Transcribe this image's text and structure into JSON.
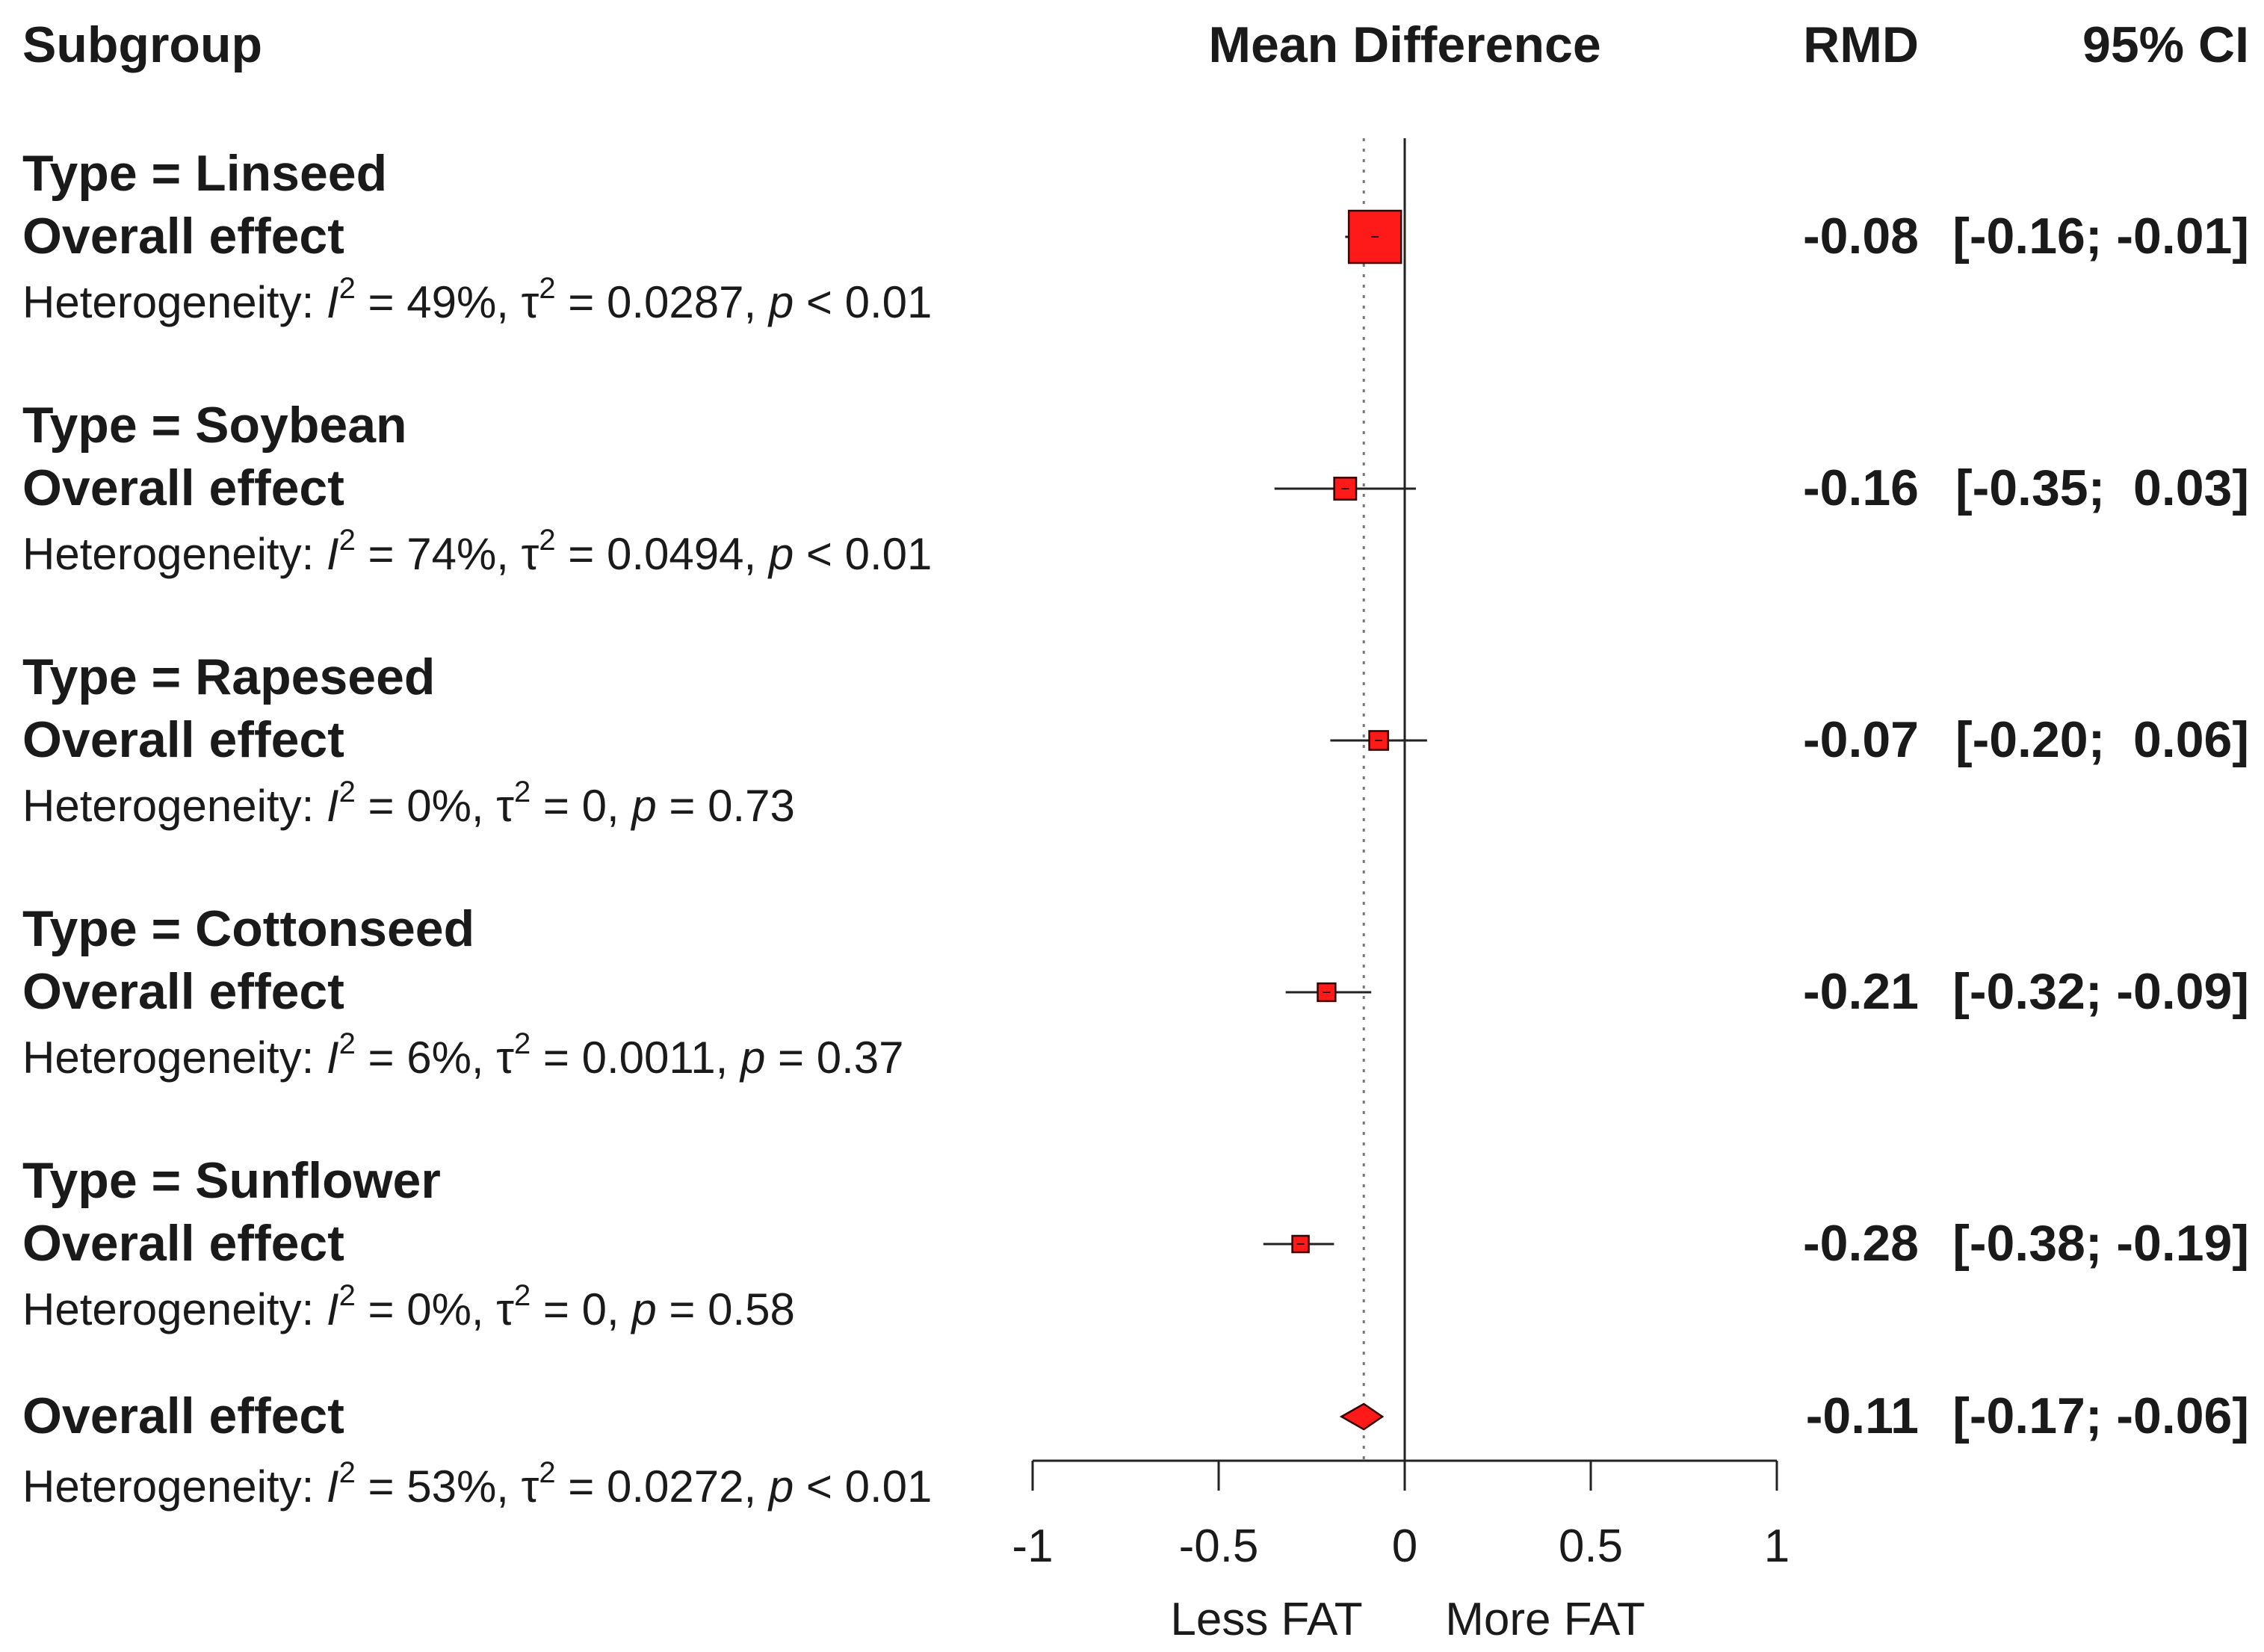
{
  "headers": {
    "subgroup": "Subgroup",
    "mean_difference": "Mean Difference",
    "rmd": "RMD",
    "ci": "95% CI"
  },
  "direction_labels": {
    "left": "Less FAT",
    "right": "More FAT"
  },
  "colors": {
    "marker_fill": "#ff1a1a",
    "marker_stroke": "#3a0000",
    "text": "#1a1a1a",
    "axis": "#222222",
    "reference_line": "#777777"
  },
  "chart_data": {
    "type": "forest",
    "xlabel": "",
    "xlim": [
      -1,
      1
    ],
    "xticks": [
      -1,
      -0.5,
      0,
      0.5,
      1
    ],
    "xtick_labels": [
      "-1",
      "-0.5",
      "0",
      "0.5",
      "1"
    ],
    "null_line": 0,
    "pooled_estimate_line": -0.11,
    "subgroups": [
      {
        "title": "Type = Linseed",
        "effect_label": "Overall effect",
        "rmd": -0.08,
        "lower": -0.16,
        "upper": -0.01,
        "rmd_text": "-0.08",
        "ci_text": "[-0.16; -0.01]",
        "weight": 1.0,
        "het": {
          "prefix": "Heterogeneity: ",
          "i2": "49%",
          "tau2": "0.0287",
          "p_op": "<",
          "p": "0.01"
        }
      },
      {
        "title": "Type = Soybean",
        "effect_label": "Overall effect",
        "rmd": -0.16,
        "lower": -0.35,
        "upper": 0.03,
        "rmd_text": "-0.16",
        "ci_text": "[-0.35;  0.03]",
        "weight": 0.42,
        "het": {
          "prefix": "Heterogeneity: ",
          "i2": "74%",
          "tau2": "0.0494",
          "p_op": "<",
          "p": "0.01"
        }
      },
      {
        "title": "Type = Rapeseed",
        "effect_label": "Overall effect",
        "rmd": -0.07,
        "lower": -0.2,
        "upper": 0.06,
        "rmd_text": "-0.07",
        "ci_text": "[-0.20;  0.06]",
        "weight": 0.36,
        "het": {
          "prefix": "Heterogeneity: ",
          "i2": "0%",
          "tau2": "0",
          "p_op": "=",
          "p": "0.73"
        }
      },
      {
        "title": "Type = Cottonseed",
        "effect_label": "Overall effect",
        "rmd": -0.21,
        "lower": -0.32,
        "upper": -0.09,
        "rmd_text": "-0.21",
        "ci_text": "[-0.32; -0.09]",
        "weight": 0.34,
        "het": {
          "prefix": "Heterogeneity: ",
          "i2": "6%",
          "tau2": "0.0011",
          "p_op": "=",
          "p": "0.37"
        }
      },
      {
        "title": "Type = Sunflower",
        "effect_label": "Overall effect",
        "rmd": -0.28,
        "lower": -0.38,
        "upper": -0.19,
        "rmd_text": "-0.28",
        "ci_text": "[-0.38; -0.19]",
        "weight": 0.31,
        "het": {
          "prefix": "Heterogeneity: ",
          "i2": "0%",
          "tau2": "0",
          "p_op": "=",
          "p": "0.58"
        }
      }
    ],
    "overall": {
      "effect_label": "Overall effect",
      "rmd": -0.11,
      "lower": -0.17,
      "upper": -0.06,
      "rmd_text": "-0.11",
      "ci_text": "[-0.17; -0.06]",
      "het": {
        "prefix": "Heterogeneity: ",
        "i2": "53%",
        "tau2": "0.0272",
        "p_op": "<",
        "p": "0.01"
      }
    }
  }
}
